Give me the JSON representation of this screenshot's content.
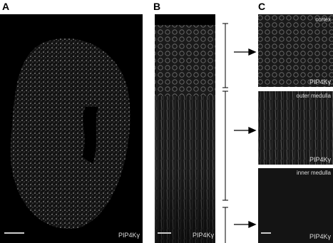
{
  "panels": [
    {
      "label": "A",
      "marker": "PIP4Kγ"
    },
    {
      "label": "B",
      "marker": "PIP4Kγ"
    },
    {
      "label": "C",
      "images": [
        {
          "region": "cortex",
          "marker": "PIP4Kγ"
        },
        {
          "region": "outer medulla",
          "marker": "PIP4Kγ"
        },
        {
          "region": "inner medulla",
          "marker": "PIP4Kγ"
        }
      ]
    }
  ]
}
